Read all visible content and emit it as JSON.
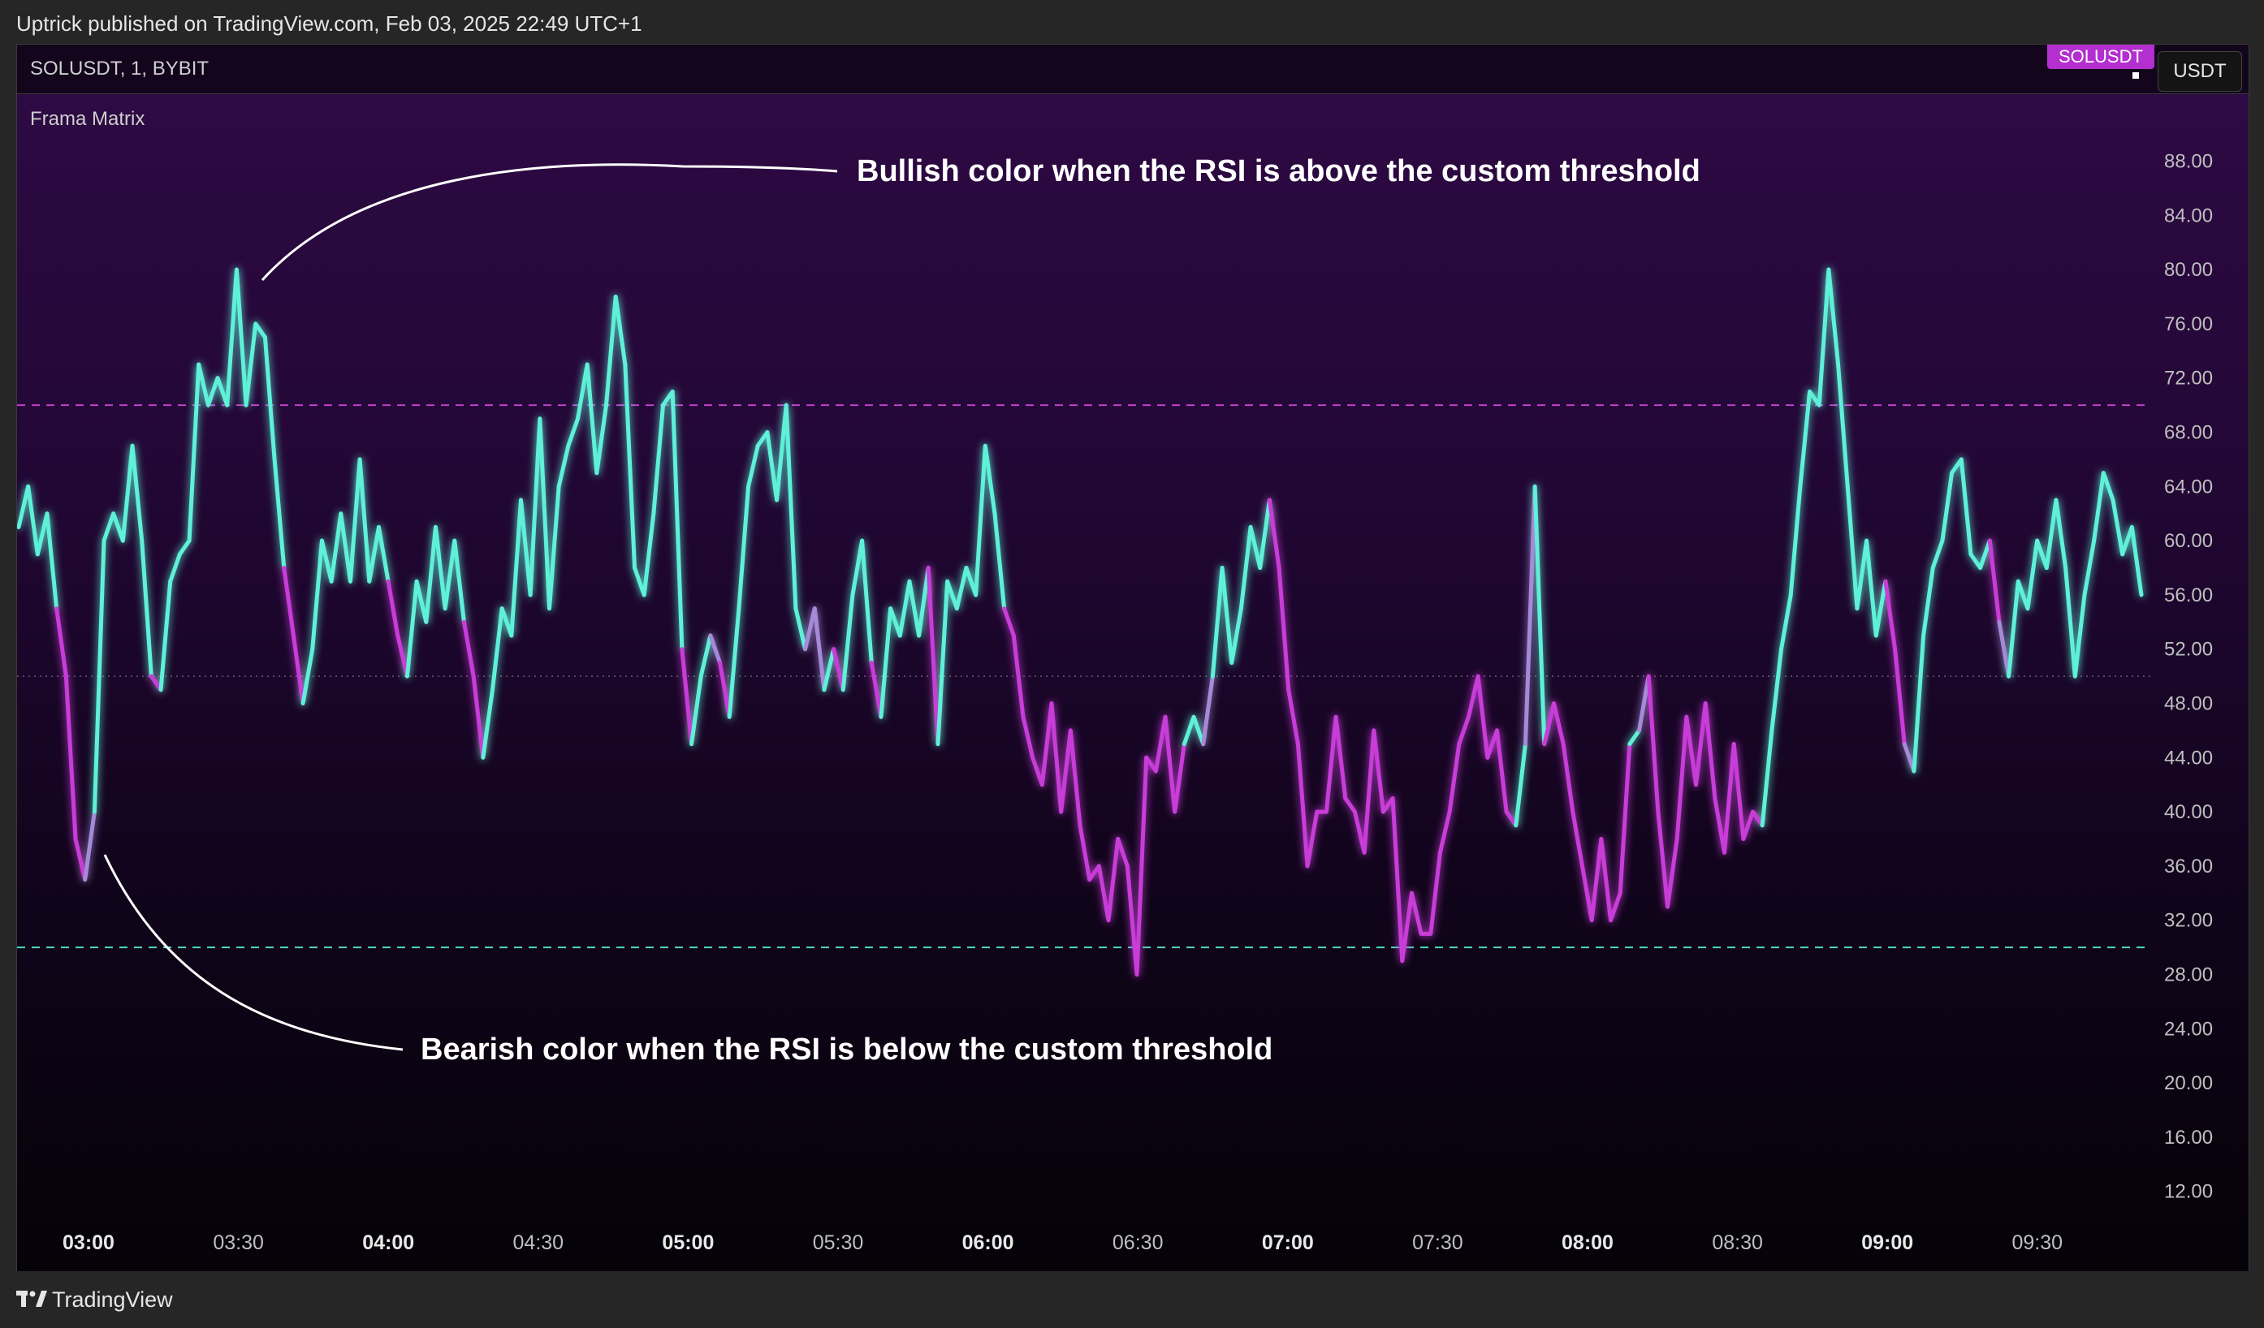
{
  "publisher": {
    "text": "Uptrick published on TradingView.com, Feb 03, 2025 22:49 UTC+1"
  },
  "chart_header": {
    "symbol": "SOLUSDT, 1, BYBIT",
    "badge": "SOLUSDT",
    "unit": "USDT",
    "indicator": "Frama Matrix"
  },
  "annotations": {
    "bullish": "Bullish color when the RSI is above the custom threshold",
    "bearish": "Bearish color when the RSI is below the custom threshold"
  },
  "footer": {
    "brand": "TradingView"
  },
  "colors": {
    "bullish": "#5ff0d8",
    "bearish": "#c83cd8",
    "neutral": "#a58ad8",
    "upper_line": "#c040c8",
    "lower_line": "#4fd8c8"
  },
  "chart_data": {
    "type": "line",
    "title": "Frama Matrix",
    "ylim": [
      8,
      92
    ],
    "y_ticks": [
      "88.00",
      "84.00",
      "80.00",
      "76.00",
      "72.00",
      "68.00",
      "64.00",
      "60.00",
      "56.00",
      "52.00",
      "48.00",
      "44.00",
      "40.00",
      "36.00",
      "32.00",
      "28.00",
      "24.00",
      "20.00",
      "16.00",
      "12.00"
    ],
    "x_ticks": [
      {
        "label": "03:00",
        "bold": true
      },
      {
        "label": "03:30",
        "bold": false
      },
      {
        "label": "04:00",
        "bold": true
      },
      {
        "label": "04:30",
        "bold": false
      },
      {
        "label": "05:00",
        "bold": true
      },
      {
        "label": "05:30",
        "bold": false
      },
      {
        "label": "06:00",
        "bold": true
      },
      {
        "label": "06:30",
        "bold": false
      },
      {
        "label": "07:00",
        "bold": true
      },
      {
        "label": "07:30",
        "bold": false
      },
      {
        "label": "08:00",
        "bold": true
      },
      {
        "label": "08:30",
        "bold": false
      },
      {
        "label": "09:00",
        "bold": true
      },
      {
        "label": "09:30",
        "bold": false
      }
    ],
    "upper_threshold": 70,
    "lower_threshold": 30,
    "midline": 50,
    "series": [
      {
        "values": [
          [
            61,
            "bull"
          ],
          [
            64,
            "bull"
          ],
          [
            59,
            "bull"
          ],
          [
            62,
            "bull"
          ],
          [
            55,
            "bull"
          ],
          [
            50,
            "bear"
          ],
          [
            38,
            "bear"
          ],
          [
            35,
            "bear"
          ],
          [
            40,
            "neutral"
          ],
          [
            60,
            "bull"
          ],
          [
            62,
            "bull"
          ],
          [
            60,
            "bull"
          ],
          [
            67,
            "bull"
          ],
          [
            60,
            "bull"
          ],
          [
            50,
            "bull"
          ],
          [
            49,
            "bear"
          ],
          [
            57,
            "bull"
          ],
          [
            59,
            "bull"
          ],
          [
            60,
            "bull"
          ],
          [
            73,
            "bull"
          ],
          [
            70,
            "bull"
          ],
          [
            72,
            "bull"
          ],
          [
            70,
            "bull"
          ],
          [
            80,
            "bull"
          ],
          [
            70,
            "bull"
          ],
          [
            76,
            "bull"
          ],
          [
            75,
            "bull"
          ],
          [
            66,
            "bull"
          ],
          [
            58,
            "bull"
          ],
          [
            53,
            "bear"
          ],
          [
            48,
            "bear"
          ],
          [
            52,
            "bull"
          ],
          [
            60,
            "bull"
          ],
          [
            57,
            "bull"
          ],
          [
            62,
            "bull"
          ],
          [
            57,
            "bull"
          ],
          [
            66,
            "bull"
          ],
          [
            57,
            "bull"
          ],
          [
            61,
            "bull"
          ],
          [
            57,
            "bull"
          ],
          [
            53,
            "bear"
          ],
          [
            50,
            "bear"
          ],
          [
            57,
            "bull"
          ],
          [
            54,
            "bull"
          ],
          [
            61,
            "bull"
          ],
          [
            55,
            "bull"
          ],
          [
            60,
            "bull"
          ],
          [
            54,
            "bull"
          ],
          [
            50,
            "bear"
          ],
          [
            44,
            "bear"
          ],
          [
            49,
            "bull"
          ],
          [
            55,
            "bull"
          ],
          [
            53,
            "bull"
          ],
          [
            63,
            "bull"
          ],
          [
            56,
            "bull"
          ],
          [
            69,
            "bull"
          ],
          [
            55,
            "bull"
          ],
          [
            64,
            "bull"
          ],
          [
            67,
            "bull"
          ],
          [
            69,
            "bull"
          ],
          [
            73,
            "bull"
          ],
          [
            65,
            "bull"
          ],
          [
            70,
            "bull"
          ],
          [
            78,
            "bull"
          ],
          [
            73,
            "bull"
          ],
          [
            58,
            "bull"
          ],
          [
            56,
            "bull"
          ],
          [
            62,
            "bull"
          ],
          [
            70,
            "bull"
          ],
          [
            71,
            "bull"
          ],
          [
            52,
            "bull"
          ],
          [
            45,
            "bear"
          ],
          [
            50,
            "bull"
          ],
          [
            53,
            "bull"
          ],
          [
            51,
            "neutral"
          ],
          [
            47,
            "bear"
          ],
          [
            55,
            "bull"
          ],
          [
            64,
            "bull"
          ],
          [
            67,
            "bull"
          ],
          [
            68,
            "bull"
          ],
          [
            63,
            "bull"
          ],
          [
            70,
            "bull"
          ],
          [
            55,
            "bull"
          ],
          [
            52,
            "bull"
          ],
          [
            55,
            "neutral"
          ],
          [
            49,
            "neutral"
          ],
          [
            52,
            "bull"
          ],
          [
            49,
            "bear"
          ],
          [
            56,
            "bull"
          ],
          [
            60,
            "bull"
          ],
          [
            51,
            "bull"
          ],
          [
            47,
            "bear"
          ],
          [
            55,
            "bull"
          ],
          [
            53,
            "bull"
          ],
          [
            57,
            "bull"
          ],
          [
            53,
            "bull"
          ],
          [
            58,
            "bull"
          ],
          [
            45,
            "bear"
          ],
          [
            57,
            "bull"
          ],
          [
            55,
            "bull"
          ],
          [
            58,
            "bull"
          ],
          [
            56,
            "bull"
          ],
          [
            67,
            "bull"
          ],
          [
            62,
            "bull"
          ],
          [
            55,
            "bull"
          ],
          [
            53,
            "bear"
          ],
          [
            47,
            "bear"
          ],
          [
            44,
            "bear"
          ],
          [
            42,
            "bear"
          ],
          [
            48,
            "bear"
          ],
          [
            40,
            "bear"
          ],
          [
            46,
            "bear"
          ],
          [
            39,
            "bear"
          ],
          [
            35,
            "bear"
          ],
          [
            36,
            "bear"
          ],
          [
            32,
            "bear"
          ],
          [
            38,
            "bear"
          ],
          [
            36,
            "bear"
          ],
          [
            28,
            "bear"
          ],
          [
            44,
            "bear"
          ],
          [
            43,
            "bear"
          ],
          [
            47,
            "bear"
          ],
          [
            40,
            "bear"
          ],
          [
            45,
            "bear"
          ],
          [
            47,
            "bull"
          ],
          [
            45,
            "bull"
          ],
          [
            50,
            "neutral"
          ],
          [
            58,
            "bull"
          ],
          [
            51,
            "bull"
          ],
          [
            55,
            "bull"
          ],
          [
            61,
            "bull"
          ],
          [
            58,
            "bull"
          ],
          [
            63,
            "bull"
          ],
          [
            58,
            "bear"
          ],
          [
            49,
            "bear"
          ],
          [
            45,
            "bear"
          ],
          [
            36,
            "bear"
          ],
          [
            40,
            "bear"
          ],
          [
            40,
            "bear"
          ],
          [
            47,
            "bear"
          ],
          [
            41,
            "bear"
          ],
          [
            40,
            "bear"
          ],
          [
            37,
            "bear"
          ],
          [
            46,
            "bear"
          ],
          [
            40,
            "bear"
          ],
          [
            41,
            "bear"
          ],
          [
            29,
            "bear"
          ],
          [
            34,
            "bear"
          ],
          [
            31,
            "bear"
          ],
          [
            31,
            "bear"
          ],
          [
            37,
            "bear"
          ],
          [
            40,
            "bear"
          ],
          [
            45,
            "bear"
          ],
          [
            47,
            "bear"
          ],
          [
            50,
            "bear"
          ],
          [
            44,
            "bear"
          ],
          [
            46,
            "bear"
          ],
          [
            40,
            "bear"
          ],
          [
            39,
            "bear"
          ],
          [
            45,
            "bull"
          ],
          [
            64,
            "neutral"
          ],
          [
            45,
            "bull"
          ],
          [
            48,
            "bear"
          ],
          [
            45,
            "bear"
          ],
          [
            40,
            "bear"
          ],
          [
            36,
            "bear"
          ],
          [
            32,
            "bear"
          ],
          [
            38,
            "bear"
          ],
          [
            32,
            "bear"
          ],
          [
            34,
            "bear"
          ],
          [
            45,
            "bear"
          ],
          [
            46,
            "bull"
          ],
          [
            50,
            "neutral"
          ],
          [
            40,
            "bear"
          ],
          [
            33,
            "bear"
          ],
          [
            38,
            "bear"
          ],
          [
            47,
            "bear"
          ],
          [
            42,
            "bear"
          ],
          [
            48,
            "bear"
          ],
          [
            41,
            "bear"
          ],
          [
            37,
            "bear"
          ],
          [
            45,
            "bear"
          ],
          [
            38,
            "bear"
          ],
          [
            40,
            "bear"
          ],
          [
            39,
            "bear"
          ],
          [
            46,
            "bull"
          ],
          [
            52,
            "bull"
          ],
          [
            56,
            "bull"
          ],
          [
            64,
            "bull"
          ],
          [
            71,
            "bull"
          ],
          [
            70,
            "bull"
          ],
          [
            80,
            "bull"
          ],
          [
            73,
            "bull"
          ],
          [
            64,
            "bull"
          ],
          [
            55,
            "bull"
          ],
          [
            60,
            "bull"
          ],
          [
            53,
            "bull"
          ],
          [
            57,
            "bull"
          ],
          [
            52,
            "bear"
          ],
          [
            45,
            "bear"
          ],
          [
            43,
            "neutral"
          ],
          [
            53,
            "bull"
          ],
          [
            58,
            "bull"
          ],
          [
            60,
            "bull"
          ],
          [
            65,
            "bull"
          ],
          [
            66,
            "bull"
          ],
          [
            59,
            "bull"
          ],
          [
            58,
            "bull"
          ],
          [
            60,
            "bull"
          ],
          [
            54,
            "bear"
          ],
          [
            50,
            "neutral"
          ],
          [
            57,
            "bull"
          ],
          [
            55,
            "bull"
          ],
          [
            60,
            "bull"
          ],
          [
            58,
            "bull"
          ],
          [
            63,
            "bull"
          ],
          [
            58,
            "bull"
          ],
          [
            50,
            "bull"
          ],
          [
            56,
            "bull"
          ],
          [
            60,
            "bull"
          ],
          [
            65,
            "bull"
          ],
          [
            63,
            "bull"
          ],
          [
            59,
            "bull"
          ],
          [
            61,
            "bull"
          ],
          [
            56,
            "bull"
          ]
        ]
      }
    ]
  }
}
